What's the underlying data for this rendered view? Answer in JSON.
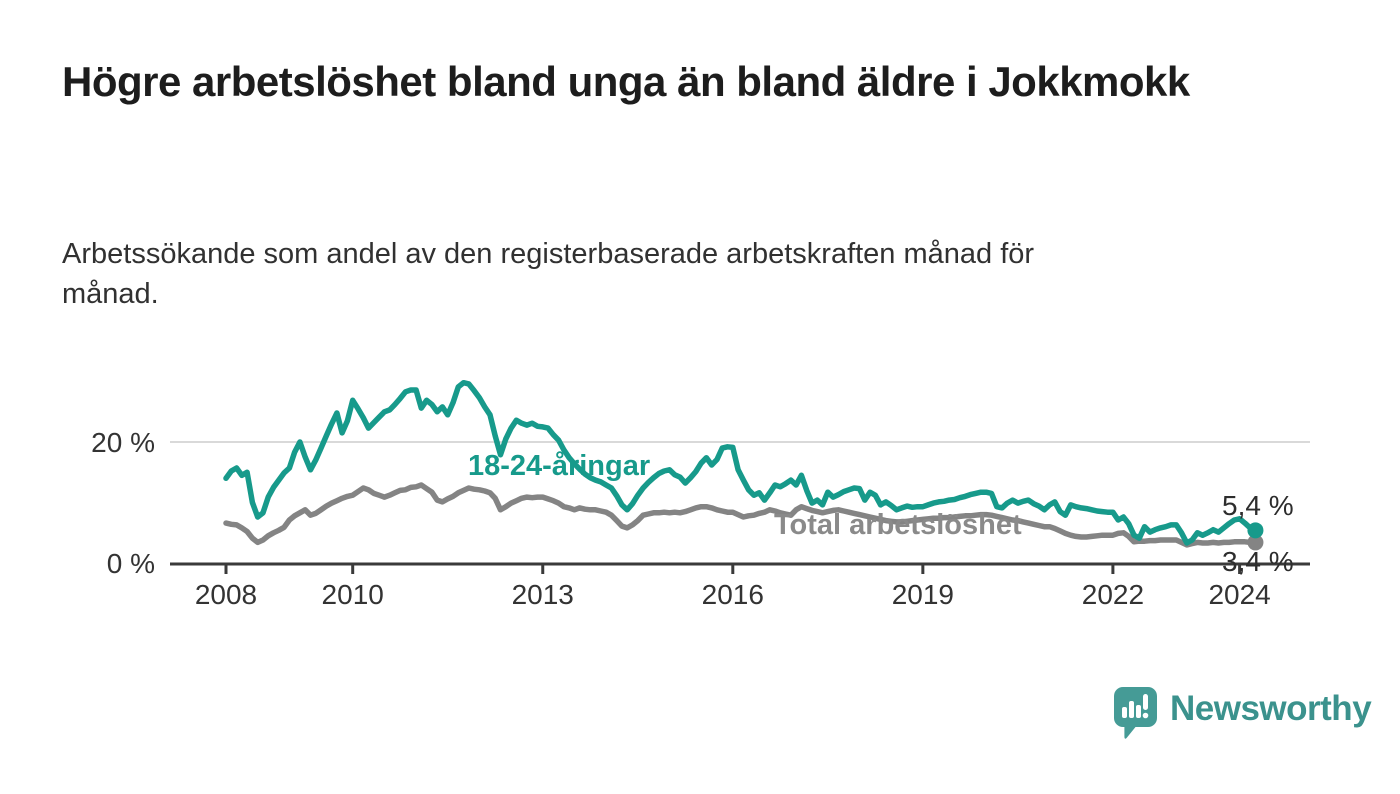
{
  "branding": {
    "wordmark": "Newsworthy",
    "logo_icon": "speech-bubble-bar-chart-icon",
    "logo_color": "#459b96"
  },
  "chart_data": {
    "type": "line",
    "title": "Högre arbetslöshet bland unga än bland äldre i Jokkmokk",
    "subtitle": "Arbetssökande som andel av den registerbaserade arbetskraften månad för månad.",
    "x_unit": "month",
    "x_start_year": 2008,
    "x_end_label_year": 2024.25,
    "ylim": [
      0,
      31
    ],
    "grid": "y-gridline-at-20-only",
    "legend_position": "inline-labels-on-lines",
    "yticks": [
      {
        "value": 0,
        "label": "0 %"
      },
      {
        "value": 20,
        "label": "20 %"
      }
    ],
    "xticks": [
      {
        "value": 2008,
        "label": "2008"
      },
      {
        "value": 2010,
        "label": "2010"
      },
      {
        "value": 2013,
        "label": "2013"
      },
      {
        "value": 2016,
        "label": "2016"
      },
      {
        "value": 2019,
        "label": "2019"
      },
      {
        "value": 2022,
        "label": "2022"
      },
      {
        "value": 2024,
        "label": "2024"
      }
    ],
    "series": [
      {
        "name": "Total arbetslöshet",
        "color": "#848484",
        "end_label": "3,4 %",
        "end_value": 3.4,
        "values": [
          6.6,
          6.4,
          6.3,
          5.8,
          5.2,
          4.1,
          3.4,
          3.8,
          4.5,
          5.0,
          5.4,
          5.9,
          7.1,
          7.8,
          8.3,
          8.8,
          7.9,
          8.2,
          8.8,
          9.4,
          9.9,
          10.3,
          10.7,
          11.0,
          11.2,
          11.8,
          12.4,
          12.1,
          11.5,
          11.2,
          10.9,
          11.2,
          11.6,
          12.0,
          12.1,
          12.5,
          12.6,
          12.9,
          12.3,
          11.7,
          10.4,
          10.1,
          10.6,
          11.0,
          11.6,
          12.0,
          12.4,
          12.2,
          12.1,
          11.9,
          11.6,
          10.7,
          8.8,
          9.3,
          9.9,
          10.3,
          10.7,
          10.9,
          10.8,
          10.9,
          10.9,
          10.6,
          10.3,
          9.9,
          9.3,
          9.1,
          8.8,
          9.1,
          8.9,
          8.8,
          8.8,
          8.6,
          8.4,
          7.9,
          7.0,
          6.1,
          5.8,
          6.3,
          7.0,
          7.9,
          8.1,
          8.3,
          8.3,
          8.4,
          8.3,
          8.4,
          8.3,
          8.5,
          8.8,
          9.1,
          9.3,
          9.3,
          9.1,
          8.8,
          8.6,
          8.4,
          8.4,
          8.0,
          7.6,
          7.8,
          7.9,
          8.2,
          8.4,
          8.8,
          8.6,
          8.3,
          8.1,
          7.9,
          8.8,
          9.3,
          9.0,
          8.7,
          8.5,
          8.3,
          8.5,
          8.7,
          8.8,
          8.6,
          8.4,
          8.2,
          8.0,
          7.8,
          7.6,
          7.4,
          7.2,
          7.0,
          6.9,
          6.8,
          6.8,
          6.9,
          7.0,
          7.1,
          7.2,
          7.3,
          7.4,
          7.4,
          7.5,
          7.5,
          7.6,
          7.7,
          7.8,
          7.8,
          7.9,
          8.0,
          8.0,
          7.9,
          7.7,
          7.5,
          7.3,
          7.1,
          7.0,
          6.8,
          6.6,
          6.4,
          6.2,
          6.0,
          6.0,
          5.7,
          5.3,
          4.9,
          4.6,
          4.4,
          4.3,
          4.3,
          4.4,
          4.5,
          4.6,
          4.6,
          4.6,
          4.9,
          5.0,
          4.4,
          3.5,
          3.6,
          3.6,
          3.7,
          3.7,
          3.8,
          3.8,
          3.8,
          3.8,
          3.4,
          3.0,
          3.2,
          3.4,
          3.3,
          3.3,
          3.4,
          3.3,
          3.4,
          3.4,
          3.5,
          3.5,
          3.5,
          3.4,
          3.4
        ]
      },
      {
        "name": "18-24-åringar",
        "color": "#179a8b",
        "end_label": "5,4 %",
        "end_value": 5.4,
        "values": [
          14.0,
          15.2,
          15.7,
          14.5,
          15.0,
          10.0,
          7.6,
          8.3,
          10.9,
          12.5,
          13.7,
          14.9,
          15.7,
          18.3,
          20.0,
          17.5,
          15.4,
          17.0,
          19.0,
          21.0,
          23.0,
          24.8,
          21.5,
          23.5,
          26.9,
          25.5,
          24.0,
          22.3,
          23.2,
          24.1,
          25.0,
          25.3,
          26.2,
          27.2,
          28.3,
          28.6,
          28.6,
          25.6,
          26.9,
          26.2,
          25.0,
          25.8,
          24.5,
          26.5,
          29.1,
          29.8,
          29.6,
          28.5,
          27.3,
          25.8,
          24.5,
          21.0,
          17.9,
          20.5,
          22.3,
          23.6,
          23.1,
          22.8,
          23.1,
          22.6,
          22.5,
          22.3,
          21.2,
          20.3,
          18.7,
          17.4,
          16.4,
          15.5,
          14.7,
          14.1,
          13.7,
          13.4,
          12.9,
          12.4,
          11.1,
          9.6,
          8.8,
          9.8,
          11.2,
          12.4,
          13.3,
          14.1,
          14.8,
          15.2,
          15.4,
          14.6,
          14.2,
          13.2,
          14.1,
          15.1,
          16.5,
          17.4,
          16.2,
          17.1,
          19.0,
          19.2,
          19.1,
          15.4,
          13.7,
          12.1,
          11.2,
          11.6,
          10.4,
          11.6,
          12.9,
          12.6,
          13.1,
          13.7,
          12.9,
          14.5,
          12.0,
          9.9,
          10.4,
          9.6,
          11.7,
          10.9,
          11.3,
          11.8,
          12.1,
          12.4,
          12.3,
          10.4,
          11.7,
          11.2,
          9.6,
          10.1,
          9.5,
          8.8,
          9.1,
          9.4,
          9.2,
          9.3,
          9.3,
          9.6,
          9.9,
          10.1,
          10.2,
          10.4,
          10.5,
          10.8,
          11.0,
          11.3,
          11.5,
          11.7,
          11.7,
          11.5,
          9.3,
          9.1,
          9.9,
          10.4,
          9.9,
          10.2,
          10.4,
          9.8,
          9.4,
          8.8,
          9.6,
          10.1,
          8.5,
          7.9,
          9.6,
          9.3,
          9.1,
          9.0,
          8.8,
          8.6,
          8.5,
          8.4,
          8.4,
          7.1,
          7.6,
          6.5,
          4.6,
          4.1,
          6.0,
          5.1,
          5.5,
          5.8,
          6.0,
          6.3,
          6.3,
          5.0,
          3.3,
          3.8,
          5.0,
          4.6,
          5.0,
          5.5,
          5.1,
          5.8,
          6.5,
          7.1,
          7.3,
          6.6,
          5.8,
          5.4
        ]
      }
    ]
  }
}
